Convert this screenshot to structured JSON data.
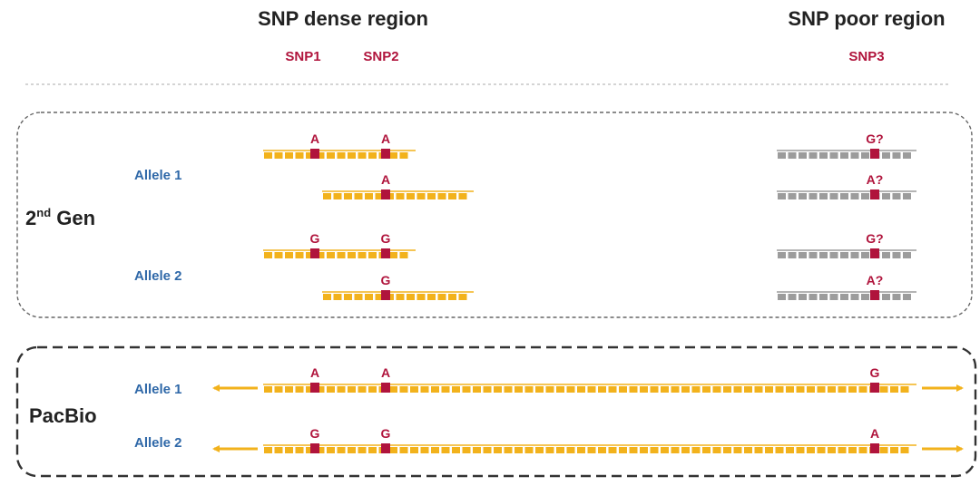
{
  "colors": {
    "snp": "#b0143c",
    "read_long": "#f2b21c",
    "read_short_dense": "#f2b21c",
    "read_short_poor": "#9c9c9c",
    "allele_text": "#2f68a8",
    "title_text": "#222222"
  },
  "regions": {
    "dense_title": "SNP dense region",
    "poor_title": "SNP poor region"
  },
  "snps": [
    {
      "id": "snp1",
      "label": "SNP1"
    },
    {
      "id": "snp2",
      "label": "SNP2"
    },
    {
      "id": "snp3",
      "label": "SNP3"
    }
  ],
  "second_gen": {
    "label_main": "2",
    "label_sup": "nd",
    "label_rest": " Gen",
    "allele1_label": "Allele 1",
    "allele2_label": "Allele 2",
    "reads": [
      {
        "region": "dense",
        "allele": 1,
        "snps": [
          {
            "snp": "snp1",
            "base": "A"
          },
          {
            "snp": "snp2",
            "base": "A"
          }
        ]
      },
      {
        "region": "dense",
        "allele": 1,
        "snps": [
          {
            "snp": "snp2",
            "base": "A"
          }
        ]
      },
      {
        "region": "dense",
        "allele": 2,
        "snps": [
          {
            "snp": "snp1",
            "base": "G"
          },
          {
            "snp": "snp2",
            "base": "G"
          }
        ]
      },
      {
        "region": "dense",
        "allele": 2,
        "snps": [
          {
            "snp": "snp2",
            "base": "G"
          }
        ]
      },
      {
        "region": "poor",
        "allele": 1,
        "snps": [
          {
            "snp": "snp3",
            "base": "G?"
          }
        ]
      },
      {
        "region": "poor",
        "allele": 1,
        "snps": [
          {
            "snp": "snp3",
            "base": "A?"
          }
        ]
      },
      {
        "region": "poor",
        "allele": 2,
        "snps": [
          {
            "snp": "snp3",
            "base": "G?"
          }
        ]
      },
      {
        "region": "poor",
        "allele": 2,
        "snps": [
          {
            "snp": "snp3",
            "base": "A?"
          }
        ]
      }
    ]
  },
  "pacbio": {
    "label": "PacBio",
    "allele1_label": "Allele 1",
    "allele2_label": "Allele 2",
    "reads": [
      {
        "allele": 1,
        "snps": [
          {
            "snp": "snp1",
            "base": "A"
          },
          {
            "snp": "snp2",
            "base": "A"
          },
          {
            "snp": "snp3",
            "base": "G"
          }
        ]
      },
      {
        "allele": 2,
        "snps": [
          {
            "snp": "snp1",
            "base": "G"
          },
          {
            "snp": "snp2",
            "base": "G"
          },
          {
            "snp": "snp3",
            "base": "A"
          }
        ]
      }
    ]
  }
}
